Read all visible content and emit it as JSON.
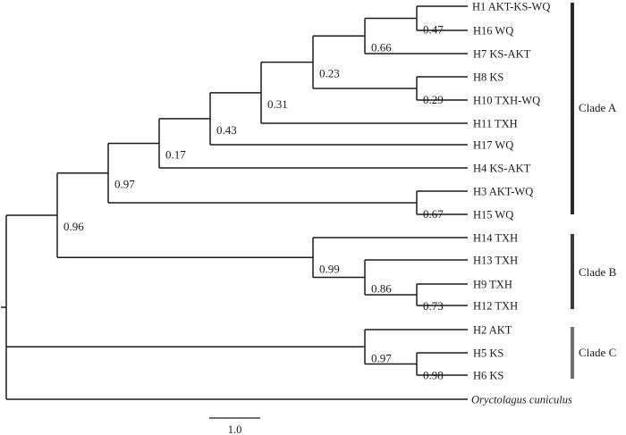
{
  "figure": {
    "tips": [
      {
        "id": "H1",
        "label": "H1  AKT-KS-WQ",
        "italic": false
      },
      {
        "id": "H16",
        "label": "H16 WQ",
        "italic": false
      },
      {
        "id": "H7",
        "label": "H7 KS-AKT",
        "italic": false
      },
      {
        "id": "H8",
        "label": "H8 KS",
        "italic": false
      },
      {
        "id": "H10",
        "label": "H10 TXH-WQ",
        "italic": false
      },
      {
        "id": "H11",
        "label": "H11 TXH",
        "italic": false
      },
      {
        "id": "H17",
        "label": "H17 WQ",
        "italic": false
      },
      {
        "id": "H4",
        "label": "H4 KS-AKT",
        "italic": false
      },
      {
        "id": "H3",
        "label": "H3 AKT-WQ",
        "italic": false
      },
      {
        "id": "H15",
        "label": "H15 WQ",
        "italic": false
      },
      {
        "id": "H14",
        "label": "H14 TXH",
        "italic": false
      },
      {
        "id": "H13",
        "label": "H13 TXH",
        "italic": false
      },
      {
        "id": "H9",
        "label": "H9 TXH",
        "italic": false
      },
      {
        "id": "H12",
        "label": "H12 TXH",
        "italic": false
      },
      {
        "id": "H2",
        "label": "H2 AKT",
        "italic": false
      },
      {
        "id": "H5",
        "label": "H5 KS",
        "italic": false
      },
      {
        "id": "H6",
        "label": "H6 KS",
        "italic": false
      },
      {
        "id": "OUT",
        "label": "Oryctolagus cuniculus",
        "italic": true
      }
    ],
    "clades": [
      {
        "label": "Clade A",
        "color": "#2b2b2b"
      },
      {
        "label": "Clade B",
        "color": "#3a3a3a"
      },
      {
        "label": "Clade C",
        "color": "#6f6f6f"
      }
    ],
    "support_values": {
      "n_h1_h16": "0.47",
      "n_h1_h7": "0.66",
      "n_h8_h10": "0.29",
      "n_h1_h10": "0.23",
      "n_h1_h11": "0.31",
      "n_h1_h17": "0.43",
      "n_h1_h4": "0.17",
      "n_h3_h15": "0.67",
      "n_cladeA": "0.97",
      "n_AB": "0.96",
      "n_h9_h12": "0.73",
      "n_h13_h12": "0.86",
      "n_cladeB": "0.99",
      "n_h5_h6": "0.98",
      "n_cladeC": "0.97"
    },
    "scale_bar_label": "1.0",
    "colors": {
      "line": "#1a1a1a",
      "background": "#ffffff"
    }
  }
}
